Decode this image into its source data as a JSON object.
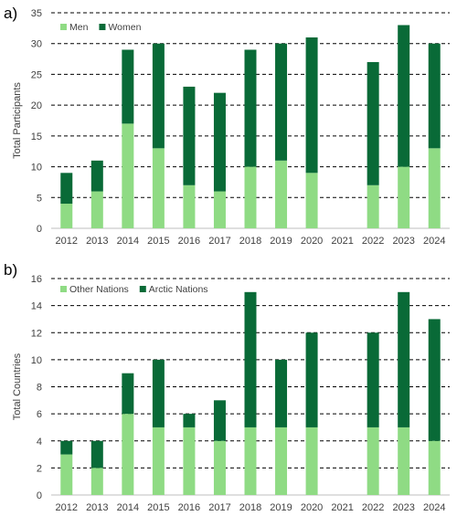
{
  "colors": {
    "light": "#8fdb84",
    "dark": "#096a37",
    "grid": "#000000",
    "axis": "#bfbfbf"
  },
  "chart_data": [
    {
      "panel": "a)",
      "type": "bar",
      "stacked": true,
      "categories": [
        "2012",
        "2013",
        "2014",
        "2015",
        "2016",
        "2017",
        "2018",
        "2019",
        "2020",
        "2021",
        "2022",
        "2023",
        "2024"
      ],
      "series": [
        {
          "name": "Men",
          "color": "light",
          "values": [
            4,
            6,
            17,
            13,
            7,
            6,
            10,
            11,
            9,
            0,
            7,
            10,
            13
          ]
        },
        {
          "name": "Women",
          "color": "dark",
          "values": [
            5,
            5,
            12,
            17,
            16,
            16,
            19,
            19,
            22,
            0,
            20,
            23,
            17
          ]
        }
      ],
      "ylabel": "Total Participants",
      "ylim": [
        0,
        35
      ],
      "yticks": [
        0,
        5,
        10,
        15,
        20,
        25,
        30,
        35
      ],
      "grid": "dashed horizontal",
      "legend": "top-left"
    },
    {
      "panel": "b)",
      "type": "bar",
      "stacked": true,
      "categories": [
        "2012",
        "2013",
        "2014",
        "2015",
        "2016",
        "2017",
        "2018",
        "2019",
        "2020",
        "2021",
        "2022",
        "2023",
        "2024"
      ],
      "series": [
        {
          "name": "Other Nations",
          "color": "light",
          "values": [
            3,
            2,
            6,
            5,
            5,
            4,
            5,
            5,
            5,
            0,
            5,
            5,
            4
          ]
        },
        {
          "name": "Arctic Nations",
          "color": "dark",
          "values": [
            1,
            2,
            3,
            5,
            1,
            3,
            10,
            5,
            7,
            0,
            7,
            10,
            9
          ]
        }
      ],
      "ylabel": "Total Countries",
      "ylim": [
        0,
        16
      ],
      "yticks": [
        0,
        2,
        4,
        6,
        8,
        10,
        12,
        14,
        16
      ],
      "grid": "dashed horizontal",
      "legend": "top-left"
    }
  ]
}
